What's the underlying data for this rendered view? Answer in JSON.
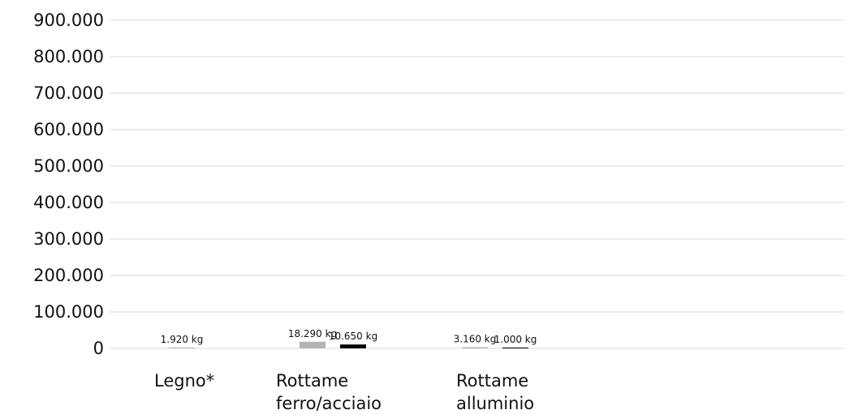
{
  "chart_data": {
    "type": "bar",
    "categories": [
      [
        "Legno*"
      ],
      [
        "Rottame",
        "ferro/acciaio"
      ],
      [
        "Rottame",
        "alluminio"
      ]
    ],
    "series": [
      {
        "values": [
          1920,
          18290,
          3160
        ],
        "labels": [
          "1.920 kg",
          "18.290 kg",
          "3.160 kg"
        ],
        "color": "#b3b3b3"
      },
      {
        "values": [
          null,
          10650,
          1000
        ],
        "labels": [
          "",
          "10.650 kg",
          "1.000 kg"
        ],
        "color": "#000000"
      }
    ],
    "ylim": [
      0,
      900000
    ],
    "yticks": [
      0,
      100000,
      200000,
      300000,
      400000,
      500000,
      600000,
      700000,
      800000,
      900000
    ],
    "ytick_labels": [
      "0",
      "100.000",
      "200.000",
      "300.000",
      "400.000",
      "500.000",
      "600.000",
      "700.000",
      "800.000",
      "900.000"
    ],
    "grid": true,
    "title": "",
    "xlabel": "",
    "ylabel": ""
  }
}
